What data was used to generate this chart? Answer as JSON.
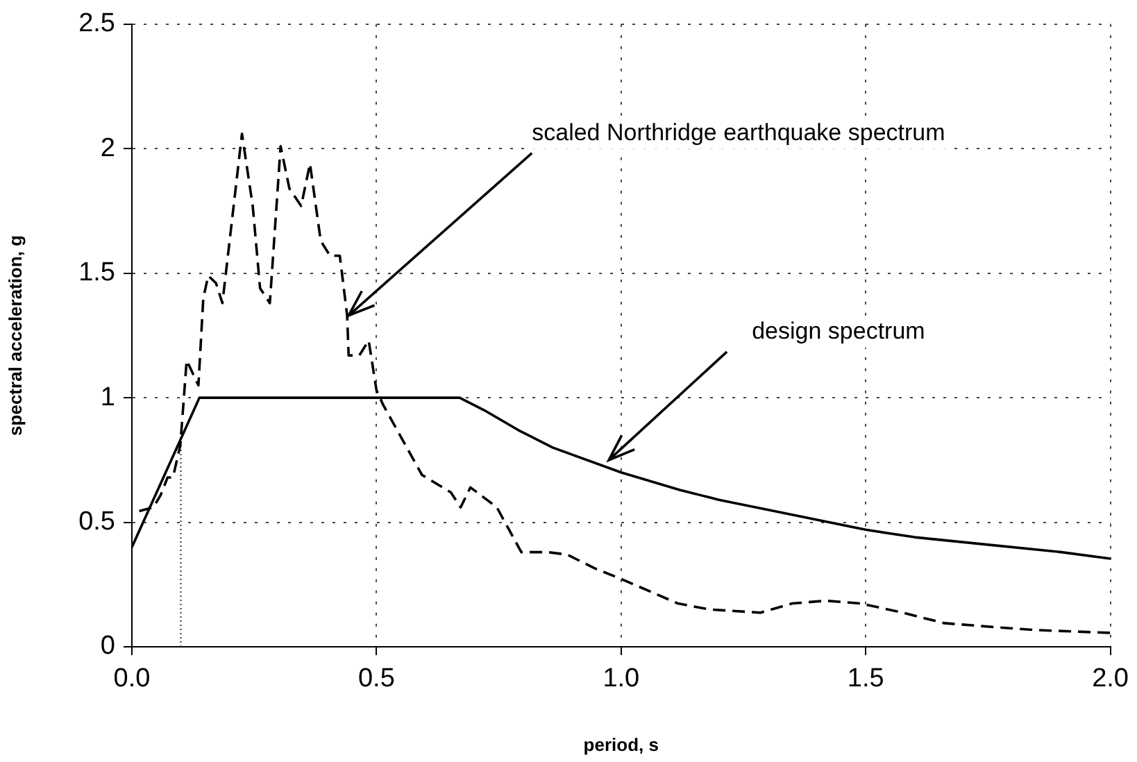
{
  "chart_data": {
    "type": "line",
    "xlabel": "period, s",
    "ylabel": "spectral acceleration, g",
    "xlim": [
      0,
      2
    ],
    "xticks": [
      {
        "value": 0,
        "label": "0.0"
      },
      0.5,
      {
        "value": 1,
        "label": "1.0"
      },
      1.5,
      {
        "value": 2,
        "label": "2.0"
      }
    ],
    "ylim": [
      0,
      2.5
    ],
    "yticks": [
      0,
      0.5,
      1,
      1.5,
      2,
      2.5
    ],
    "grid": true,
    "legend": false,
    "marker": "none",
    "annotations": [
      {
        "text": "scaled Northridge earthquake spectrum",
        "x": 0.443,
        "y": 1.33
      },
      {
        "text": "design spectrum",
        "x": 0.975,
        "y": 0.75
      }
    ],
    "series": [
      {
        "color": "#000000",
        "line_style": "solid",
        "x": [
          0,
          0.138,
          0.67,
          0.72,
          0.79,
          0.86,
          1.0,
          1.12,
          1.2,
          1.35,
          1.5,
          1.6,
          1.75,
          1.9,
          2.0
        ],
        "values": [
          0.4,
          1.0,
          1.0,
          0.95,
          0.87,
          0.8,
          0.7,
          0.63,
          0.59,
          0.53,
          0.47,
          0.44,
          0.41,
          0.38,
          0.354
        ]
      },
      {
        "color": "#000000",
        "line_style": "dashed",
        "x": [
          0.015,
          0.044,
          0.059,
          0.073,
          0.084,
          0.099,
          0.112,
          0.124,
          0.136,
          0.146,
          0.156,
          0.172,
          0.185,
          0.198,
          0.225,
          0.247,
          0.262,
          0.282,
          0.304,
          0.322,
          0.346,
          0.364,
          0.386,
          0.405,
          0.425,
          0.44,
          0.443,
          0.465,
          0.484,
          0.5,
          0.514,
          0.593,
          0.652,
          0.672,
          0.692,
          0.746,
          0.796,
          0.85,
          0.89,
          0.946,
          1.003,
          1.116,
          1.18,
          1.285,
          1.35,
          1.418,
          1.49,
          1.576,
          1.66,
          1.757,
          1.85,
          2.0
        ],
        "values": [
          0.545,
          0.56,
          0.61,
          0.68,
          0.68,
          0.81,
          1.15,
          1.1,
          1.05,
          1.4,
          1.49,
          1.46,
          1.38,
          1.6,
          2.06,
          1.77,
          1.44,
          1.38,
          2.01,
          1.84,
          1.77,
          1.94,
          1.63,
          1.57,
          1.57,
          1.33,
          1.17,
          1.17,
          1.23,
          1.03,
          0.97,
          0.69,
          0.62,
          0.56,
          0.64,
          0.56,
          0.38,
          0.38,
          0.37,
          0.315,
          0.27,
          0.174,
          0.15,
          0.137,
          0.174,
          0.185,
          0.174,
          0.137,
          0.095,
          0.08,
          0.067,
          0.056
        ]
      },
      {
        "color": "#555555",
        "line_style": "dotted",
        "x": [
          0.1,
          0.1
        ],
        "values": [
          0,
          0.86
        ]
      }
    ]
  }
}
